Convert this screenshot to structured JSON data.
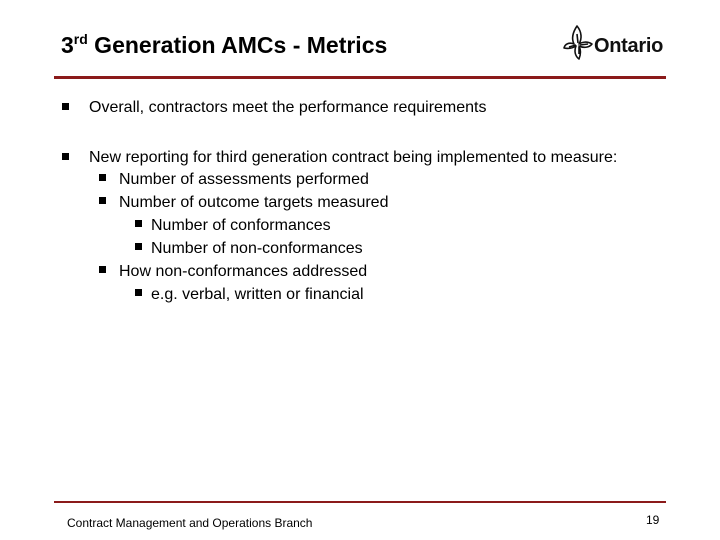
{
  "slide": {
    "title_prefix": "3",
    "title_superscript": "rd",
    "title_rest": " Generation AMCs - Metrics",
    "logo_text": "Ontario"
  },
  "bullets": [
    {
      "level": 1,
      "text": "Overall, contractors meet the performance requirements"
    },
    {
      "level": 1,
      "text": "New reporting for third generation contract being implemented to measure:"
    },
    {
      "level": 2,
      "text": "Number of assessments performed"
    },
    {
      "level": 2,
      "text": "Number of outcome targets measured"
    },
    {
      "level": 3,
      "text": "Number of conformances"
    },
    {
      "level": 3,
      "text": "Number of non-conformances"
    },
    {
      "level": 2,
      "text": "How non-conformances addressed"
    },
    {
      "level": 3,
      "text": "e.g. verbal, written or financial"
    }
  ],
  "footer": {
    "branch": "Contract Management and Operations Branch",
    "page_number": "19"
  },
  "colors": {
    "rule": "#8b1a1a"
  }
}
